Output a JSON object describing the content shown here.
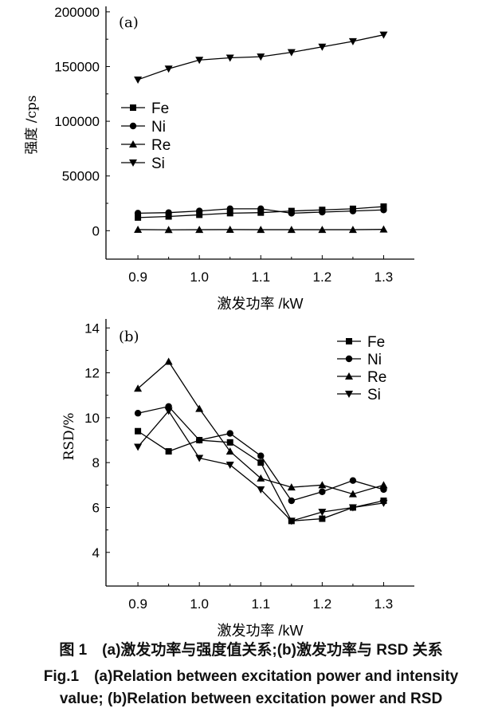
{
  "chart_data": [
    {
      "type": "line",
      "panel_label": "(a)",
      "xlabel": "激发功率 /kW",
      "ylabel": "强度 /cps",
      "x": [
        0.9,
        0.95,
        1.0,
        1.05,
        1.1,
        1.15,
        1.2,
        1.25,
        1.3
      ],
      "xticks": [
        "0.9",
        "1.0",
        "1.1",
        "1.2",
        "1.3"
      ],
      "yticks": [
        "0",
        "50000",
        "100000",
        "150000",
        "200000"
      ],
      "xlim": [
        0.848,
        1.35
      ],
      "ylim": [
        -26000,
        205000
      ],
      "legend": "left-middle",
      "series": [
        {
          "name": "Fe",
          "marker": "square",
          "values": [
            12000,
            13000,
            14500,
            16000,
            16500,
            18000,
            19000,
            20000,
            22000
          ]
        },
        {
          "name": "Ni",
          "marker": "circle",
          "values": [
            16000,
            16500,
            18000,
            20000,
            20000,
            16000,
            17000,
            18000,
            19000
          ]
        },
        {
          "name": "Re",
          "marker": "triangle-up",
          "values": [
            1000,
            800,
            900,
            1000,
            900,
            900,
            900,
            900,
            1200
          ]
        },
        {
          "name": "Si",
          "marker": "triangle-down",
          "values": [
            138000,
            148000,
            156000,
            158000,
            159000,
            163000,
            168000,
            173000,
            179000
          ]
        }
      ]
    },
    {
      "type": "line",
      "panel_label": "(b)",
      "xlabel": "激发功率 /kW",
      "ylabel": "RSD/%",
      "x": [
        0.9,
        0.95,
        1.0,
        1.05,
        1.1,
        1.15,
        1.2,
        1.25,
        1.3
      ],
      "xticks": [
        "0.9",
        "1.0",
        "1.1",
        "1.2",
        "1.3"
      ],
      "yticks": [
        "4",
        "6",
        "8",
        "10",
        "12",
        "14"
      ],
      "xlim": [
        0.848,
        1.35
      ],
      "ylim": [
        2.5,
        14.4
      ],
      "legend": "top-right",
      "series": [
        {
          "name": "Fe",
          "marker": "square",
          "values": [
            9.4,
            8.5,
            9.0,
            8.9,
            8.0,
            5.4,
            5.5,
            6.0,
            6.3
          ]
        },
        {
          "name": "Ni",
          "marker": "circle",
          "values": [
            10.2,
            10.5,
            9.0,
            9.3,
            8.3,
            6.3,
            6.7,
            7.2,
            6.8
          ]
        },
        {
          "name": "Re",
          "marker": "triangle-up",
          "values": [
            11.3,
            12.5,
            10.4,
            8.5,
            7.3,
            6.9,
            7.0,
            6.6,
            7.0
          ]
        },
        {
          "name": "Si",
          "marker": "triangle-down",
          "values": [
            8.7,
            10.3,
            8.2,
            7.9,
            6.8,
            5.4,
            5.8,
            6.0,
            6.2
          ]
        }
      ]
    }
  ],
  "caption": {
    "cn": "图 1　(a)激发功率与强度值关系;(b)激发功率与 RSD 关系",
    "en1": "Fig.1　(a)Relation between excitation power and intensity",
    "en2": "value; (b)Relation between excitation power and RSD"
  }
}
